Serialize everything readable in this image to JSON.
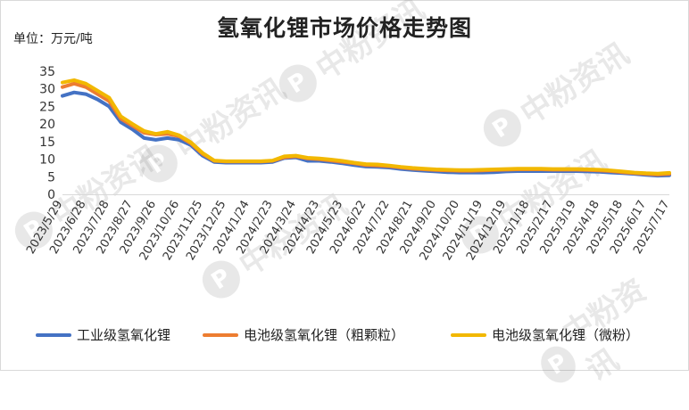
{
  "chart_data": {
    "type": "line",
    "title": "氢氧化锂市场价格走势图",
    "unit_label": "单位：万元/吨",
    "ylim": [
      0,
      35
    ],
    "y_ticks": [
      "0",
      "5",
      "10",
      "15",
      "20",
      "25",
      "30",
      "35"
    ],
    "x_tick_labels": [
      "2023/5/29",
      "2023/6/28",
      "2023/7/28",
      "2023/8/27",
      "2023/9/26",
      "2023/10/26",
      "2023/11/25",
      "2023/12/25",
      "2024/1/24",
      "2024/2/23",
      "2024/3/24",
      "2024/4/23",
      "2024/5/23",
      "2024/6/22",
      "2024/7/22",
      "2024/8/21",
      "2024/9/20",
      "2024/10/20",
      "2024/11/19",
      "2024/12/19",
      "2025/1/18",
      "2025/2/17",
      "2025/3/19",
      "2025/4/18",
      "2025/5/18",
      "2025/6/17",
      "2025/7/17"
    ],
    "x": [
      "2023/5/29",
      "2023/6/13",
      "2023/6/28",
      "2023/7/13",
      "2023/7/28",
      "2023/8/12",
      "2023/8/27",
      "2023/9/11",
      "2023/9/26",
      "2023/10/11",
      "2023/10/26",
      "2023/11/10",
      "2023/11/25",
      "2023/12/10",
      "2023/12/25",
      "2024/1/9",
      "2024/1/24",
      "2024/2/8",
      "2024/2/23",
      "2024/3/9",
      "2024/3/24",
      "2024/4/8",
      "2024/4/23",
      "2024/5/8",
      "2024/5/23",
      "2024/6/7",
      "2024/6/22",
      "2024/7/7",
      "2024/7/22",
      "2024/8/6",
      "2024/8/21",
      "2024/9/5",
      "2024/9/20",
      "2024/10/5",
      "2024/10/20",
      "2024/11/4",
      "2024/11/19",
      "2024/12/4",
      "2024/12/19",
      "2025/1/3",
      "2025/1/18",
      "2025/2/2",
      "2025/2/17",
      "2025/3/4",
      "2025/3/19",
      "2025/4/3",
      "2025/4/18",
      "2025/5/3",
      "2025/5/18",
      "2025/6/2",
      "2025/6/17",
      "2025/7/2",
      "2025/7/17"
    ],
    "series": [
      {
        "name": "工业级氢氧化锂",
        "color": "#4472C4",
        "values": [
          28,
          29,
          28.5,
          27,
          25,
          20.5,
          18.5,
          16,
          15.5,
          16,
          15.5,
          14,
          11,
          9.2,
          9,
          9,
          9,
          9,
          9.2,
          10.3,
          10.5,
          9.5,
          9.5,
          9.2,
          8.8,
          8.3,
          7.9,
          7.8,
          7.6,
          7.2,
          6.9,
          6.7,
          6.5,
          6.3,
          6.2,
          6.2,
          6.2,
          6.3,
          6.5,
          6.6,
          6.6,
          6.6,
          6.6,
          6.6,
          6.6,
          6.5,
          6.4,
          6.2,
          6.0,
          5.8,
          5.5,
          5.3,
          5.4
        ]
      },
      {
        "name": "电池级氢氧化锂（粗颗粒）",
        "color": "#ED7D31",
        "values": [
          30.5,
          31.5,
          30.5,
          28.5,
          26.5,
          21.5,
          19.5,
          17.5,
          17,
          17.2,
          16.5,
          14.5,
          11.5,
          9.5,
          9.3,
          9.3,
          9.3,
          9.3,
          9.5,
          10.5,
          10.8,
          10.2,
          10.0,
          9.6,
          9.2,
          8.8,
          8.3,
          8.2,
          8.0,
          7.6,
          7.3,
          7.1,
          6.9,
          6.8,
          6.7,
          6.7,
          6.8,
          6.9,
          7.0,
          7.1,
          7.1,
          7.1,
          7.0,
          7.0,
          7.0,
          6.9,
          6.8,
          6.6,
          6.3,
          6.0,
          5.8,
          5.6,
          5.8
        ]
      },
      {
        "name": "电池级氢氧化锂（微粉）",
        "color": "#F2B800",
        "values": [
          31.8,
          32.5,
          31.5,
          29.5,
          27.5,
          22.2,
          20,
          18,
          17.2,
          17.8,
          16.8,
          14.8,
          11.8,
          9.6,
          9.4,
          9.4,
          9.4,
          9.4,
          9.6,
          10.8,
          11.0,
          10.4,
          10.2,
          9.9,
          9.5,
          9.0,
          8.6,
          8.5,
          8.2,
          7.8,
          7.5,
          7.3,
          7.1,
          7.0,
          6.9,
          6.9,
          7.0,
          7.1,
          7.2,
          7.3,
          7.3,
          7.3,
          7.2,
          7.2,
          7.2,
          7.1,
          7.0,
          6.8,
          6.5,
          6.2,
          6.0,
          5.9,
          6.1
        ]
      }
    ],
    "legend_position": "bottom",
    "grid": false
  },
  "watermarks": [
    {
      "glyph": "P",
      "text": "中粉资讯"
    },
    {
      "glyph": "P",
      "text": "中粉资讯"
    },
    {
      "glyph": "P",
      "text": "中粉资讯"
    },
    {
      "glyph": "P",
      "text": "中粉资讯"
    },
    {
      "glyph": "P",
      "text": "中粉资讯"
    },
    {
      "glyph": "P",
      "text": "中粉资讯"
    },
    {
      "glyph": "P",
      "text": "中粉资讯"
    }
  ]
}
